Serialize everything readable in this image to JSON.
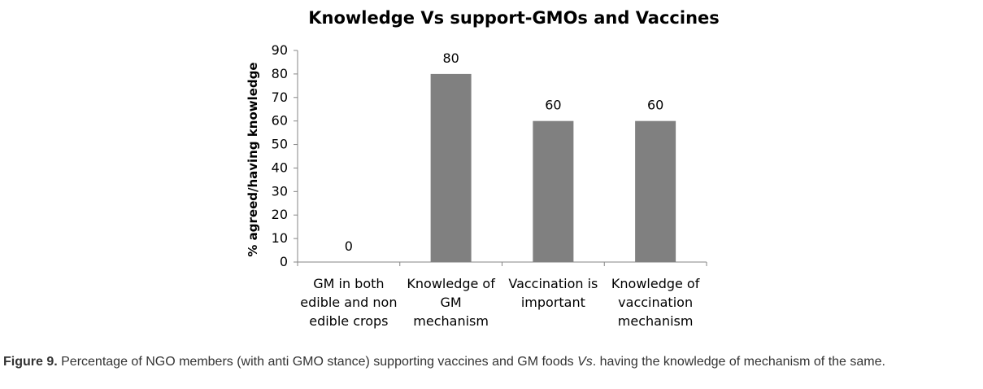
{
  "chart_data": {
    "type": "bar",
    "title": "Knowledge Vs support-GMOs and Vaccines",
    "ylabel": "% agreed/having knowledge",
    "xlabel": "",
    "ylim": [
      0,
      90
    ],
    "yticks": [
      0,
      10,
      20,
      30,
      40,
      50,
      60,
      70,
      80,
      90
    ],
    "categories": [
      [
        "GM in both",
        "edible and non",
        "edible crops"
      ],
      [
        "Knowledge of",
        "GM",
        "mechanism"
      ],
      [
        "Vaccination is",
        "important"
      ],
      [
        "Knowledge of",
        "vaccination",
        "mechanism"
      ]
    ],
    "values": [
      0,
      80,
      60,
      60
    ],
    "bar_color": "#808080",
    "grid": false,
    "legend": "none"
  },
  "caption": {
    "label": "Figure 9.",
    "text_1": " Percentage of NGO members (with anti GMO stance) supporting vaccines and GM foods ",
    "vs": "Vs",
    "text_2": ". having the knowledge of mechanism of the same."
  }
}
